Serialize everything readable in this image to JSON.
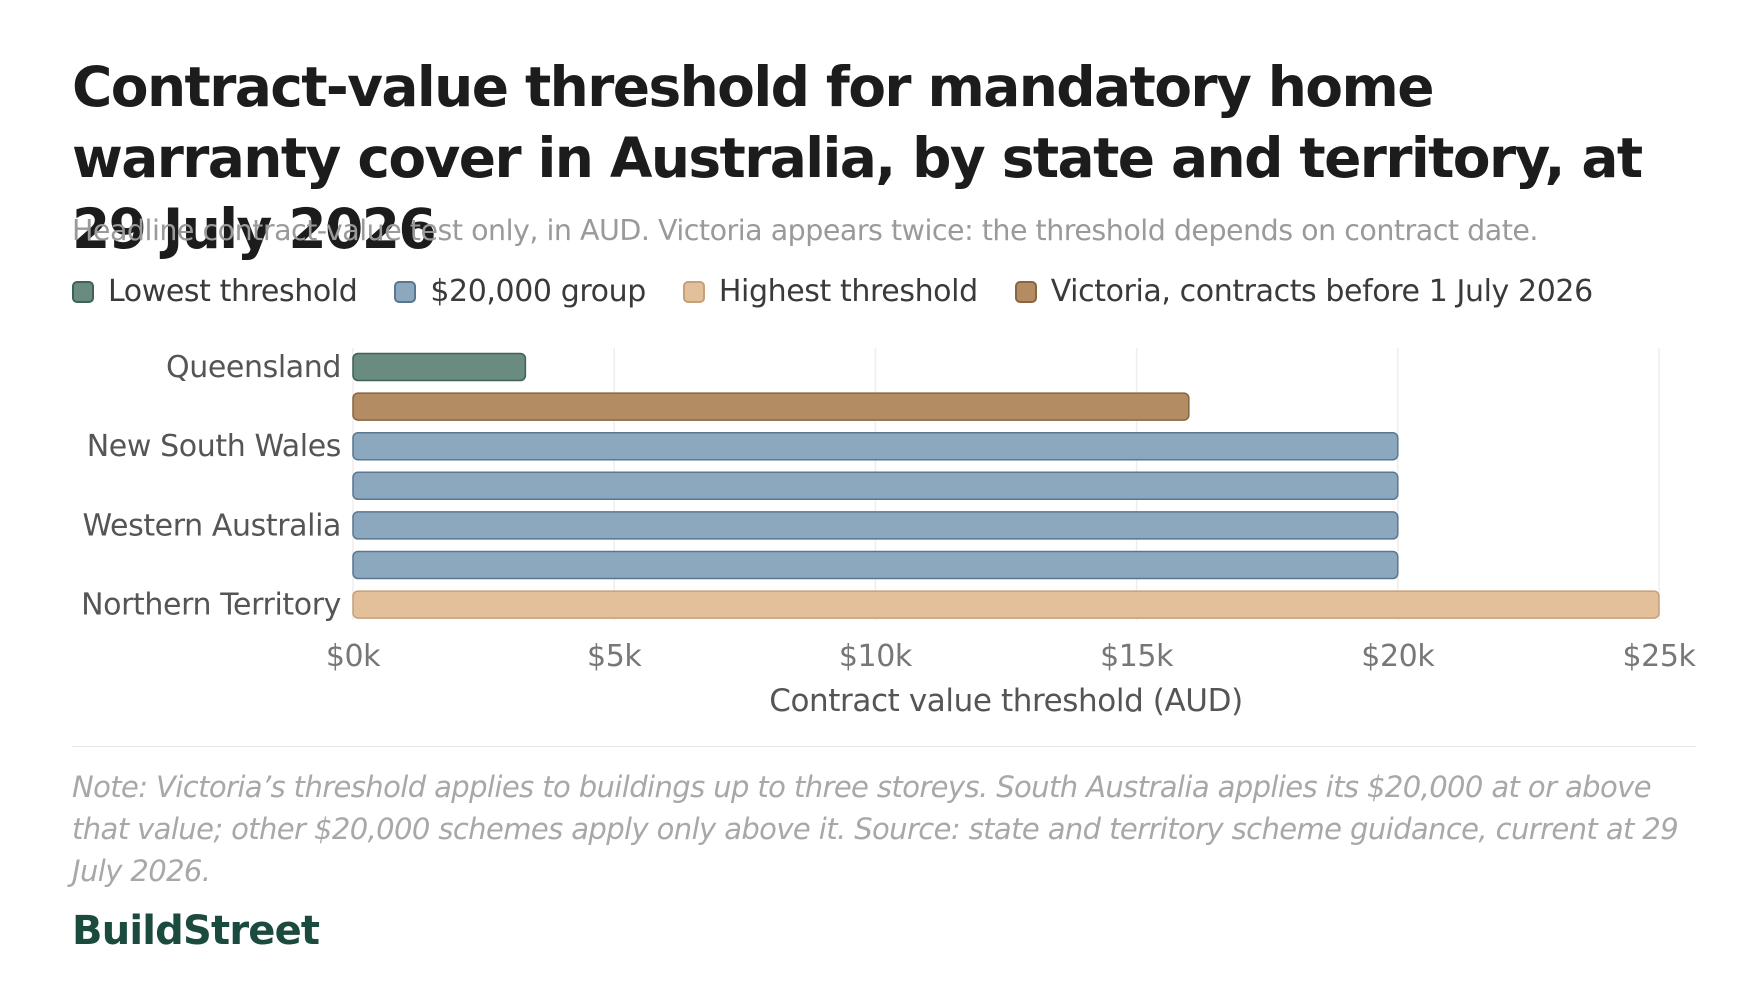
{
  "title": "Contract-value threshold for mandatory home warranty cover in Australia, by state and territory, at 29 July 2026",
  "subtitle": "Headline contract-value test only, in AUD. Victoria appears twice: the threshold depends on contract date.",
  "legend": [
    {
      "label": "Lowest threshold",
      "fill": "#6a8b80",
      "stroke": "#3f6156"
    },
    {
      "label": "$20,000 group",
      "fill": "#8ca8bf",
      "stroke": "#5a7790"
    },
    {
      "label": "Highest threshold",
      "fill": "#e3c09a",
      "stroke": "#c4a07b"
    },
    {
      "label": "Victoria, contracts before 1 July 2026",
      "fill": "#b38c64",
      "stroke": "#8a6640"
    }
  ],
  "chart_data": {
    "type": "bar",
    "orientation": "horizontal",
    "categories": [
      "Queensland",
      "",
      "New South Wales",
      "",
      "Western Australia",
      "",
      "Northern Territory"
    ],
    "values": [
      3300,
      16000,
      20000,
      20000,
      20000,
      20000,
      25000
    ],
    "groups": [
      "Lowest threshold",
      "Victoria, contracts before 1 July 2026",
      "$20,000 group",
      "$20,000 group",
      "$20,000 group",
      "$20,000 group",
      "Highest threshold"
    ],
    "xlabel": "Contract value threshold (AUD)",
    "xlim": [
      0,
      25000
    ],
    "x_ticks": [
      0,
      5000,
      10000,
      15000,
      20000,
      25000
    ],
    "x_tick_labels": [
      "$0k",
      "$5k",
      "$10k",
      "$15k",
      "$20k",
      "$25k"
    ],
    "grid": "vertical"
  },
  "note": "Note: Victoria’s threshold applies to buildings up to three storeys. South Australia applies its $20,000 at or above that value; other $20,000 schemes apply only above it. Source: state and territory scheme guidance, current at 29 July 2026.",
  "brand": "BuildStreet"
}
